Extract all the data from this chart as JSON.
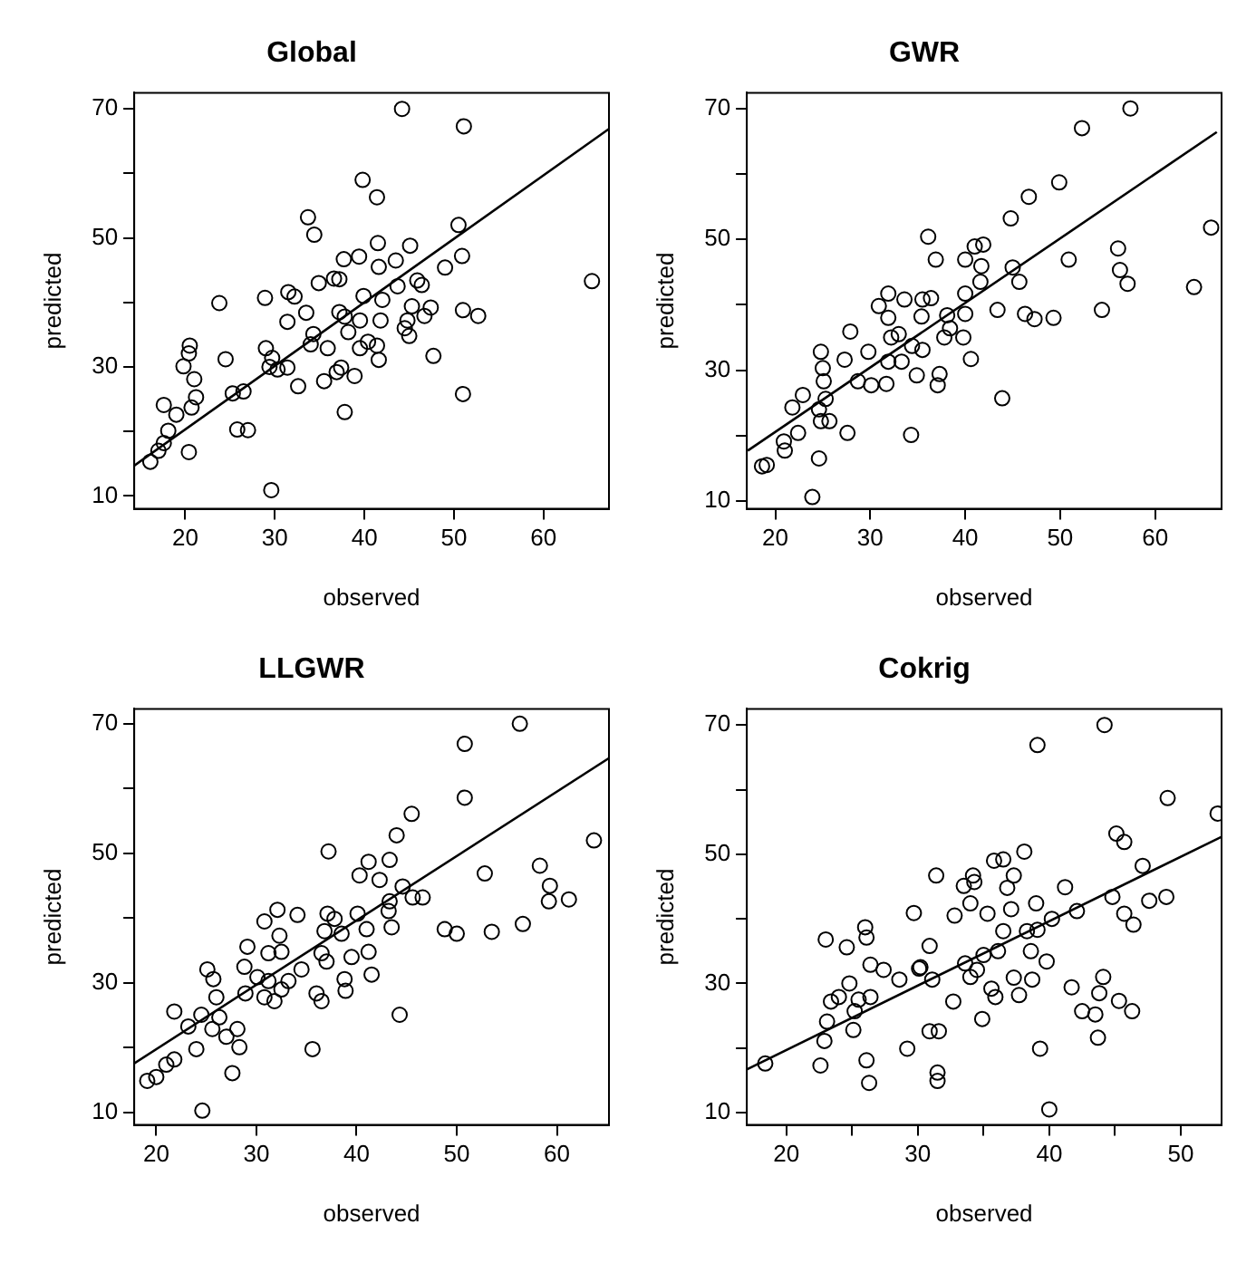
{
  "chart_data": [
    {
      "type": "scatter",
      "title": "Global",
      "xlabel": "observed",
      "ylabel": "predicted",
      "xlim": [
        14.3,
        67.3
      ],
      "ylim": [
        8,
        72.5
      ],
      "xticks": [
        20,
        30,
        40,
        50,
        60
      ],
      "yticks": [
        10,
        {
          "value": 20,
          "label": null
        },
        30,
        {
          "value": 40,
          "label": null
        },
        50,
        {
          "value": 60,
          "label": null
        },
        70
      ],
      "grid": false,
      "legend": false,
      "series": [
        {
          "type": "scatter",
          "marker": "circle",
          "color": "#000000",
          "x": [
            44.2,
            51.1,
            39.8,
            41.4,
            33.7,
            34.4,
            50.5,
            41.5,
            45.1,
            39.4,
            37.7,
            43.5,
            41.6,
            50.9,
            49,
            65.4,
            34.9,
            36.6,
            37.2,
            45.9,
            43.7,
            46.4,
            31.5,
            32.2,
            23.8,
            28.9,
            39.9,
            42,
            33.5,
            37.2,
            37.8,
            39.5,
            41.8,
            44.8,
            47.4,
            46.7,
            45.3,
            51,
            52.7,
            31.4,
            44.5,
            45,
            34.3,
            38.2,
            40.4,
            41.4,
            39.5,
            20.5,
            20.4,
            19.8,
            24.5,
            29,
            29.7,
            29.4,
            30.3,
            31.4,
            34,
            35.9,
            41.6,
            47.7,
            21,
            21.2,
            20.7,
            19,
            17.6,
            25.3,
            26.5,
            32.6,
            35.5,
            36.9,
            37.4,
            38.9,
            51,
            37.8,
            25.8,
            27,
            20.4,
            18.1,
            17.6,
            17,
            16.1,
            29.6
          ],
          "values": [
            70,
            67.3,
            59,
            56.3,
            53.2,
            50.5,
            52,
            49.2,
            48.8,
            47.1,
            46.7,
            46.5,
            45.5,
            47.2,
            45.4,
            43.3,
            43,
            43.7,
            43.6,
            43.4,
            42.5,
            42.7,
            41.6,
            40.9,
            39.9,
            40.7,
            41,
            40.4,
            38.4,
            38.5,
            37.8,
            37.2,
            37.2,
            37.2,
            39.2,
            37.9,
            39.4,
            38.8,
            37.9,
            37,
            36,
            34.8,
            35.1,
            35.4,
            33.9,
            33.3,
            32.9,
            33.3,
            32.1,
            30.1,
            31.2,
            32.9,
            31.4,
            30,
            29.6,
            29.9,
            33.5,
            32.9,
            31.1,
            31.7,
            28.1,
            25.3,
            23.7,
            22.6,
            24.1,
            25.9,
            26.2,
            27,
            27.8,
            29.2,
            29.9,
            28.6,
            25.8,
            23,
            20.3,
            20.2,
            16.8,
            20.1,
            18.2,
            17,
            15.3,
            10.9
          ]
        },
        {
          "type": "line",
          "color": "#000000",
          "x": [
            14.3,
            67.3
          ],
          "values": [
            14.7,
            66.9
          ]
        }
      ]
    },
    {
      "type": "scatter",
      "title": "GWR",
      "xlabel": "observed",
      "ylabel": "predicted",
      "xlim": [
        17,
        67
      ],
      "ylim": [
        8.8,
        72.4
      ],
      "xticks": [
        20,
        30,
        40,
        50,
        60
      ],
      "yticks": [
        10,
        {
          "value": 20,
          "label": null
        },
        30,
        {
          "value": 40,
          "label": null
        },
        50,
        {
          "value": 60,
          "label": null
        },
        70
      ],
      "grid": false,
      "legend": false,
      "series": [
        {
          "type": "scatter",
          "marker": "circle",
          "color": "#000000",
          "x": [
            57.4,
            52.3,
            49.9,
            46.7,
            44.8,
            36.1,
            36.9,
            50.9,
            41,
            41.9,
            40,
            41.7,
            56.1,
            56.3,
            57.1,
            64.1,
            65.9,
            45,
            45.7,
            41.6,
            43.4,
            46.3,
            47.3,
            49.3,
            54.4,
            40,
            35.5,
            36.4,
            33.6,
            31.9,
            30.9,
            31.9,
            35.4,
            38.1,
            38.4,
            40,
            37.8,
            39.8,
            35.5,
            34.4,
            33,
            32.2,
            27.9,
            27.3,
            29.8,
            31.9,
            33.3,
            34.9,
            37.3,
            37.1,
            40.6,
            28.7,
            30.1,
            31.7,
            24.8,
            25,
            25.1,
            25.3,
            22.9,
            21.8,
            24.6,
            24.8,
            25.7,
            22.4,
            27.6,
            34.3,
            43.9,
            20.9,
            21,
            19.1,
            18.6,
            24.6,
            23.9
          ],
          "values": [
            70,
            67,
            58.7,
            56.5,
            53.2,
            50.4,
            46.9,
            46.9,
            48.9,
            49.2,
            46.9,
            45.9,
            48.6,
            45.3,
            43.2,
            42.7,
            51.8,
            45.7,
            43.5,
            43.5,
            39.2,
            38.6,
            37.8,
            38,
            39.2,
            41.7,
            40.8,
            41,
            40.8,
            41.7,
            39.8,
            38,
            38.2,
            38.4,
            36.4,
            38.6,
            35,
            35,
            33.1,
            33.7,
            35.5,
            35,
            35.9,
            31.6,
            32.8,
            31.3,
            31.3,
            29.2,
            29.4,
            27.7,
            31.7,
            28.3,
            27.7,
            27.9,
            32.8,
            30.3,
            28.3,
            25.6,
            26.2,
            24.3,
            24,
            22.2,
            22.2,
            20.4,
            20.4,
            20.1,
            25.7,
            19.1,
            17.7,
            15.5,
            15.3,
            16.5,
            10.6
          ]
        },
        {
          "type": "line",
          "color": "#000000",
          "x": [
            17.1,
            66.5
          ],
          "values": [
            17.7,
            66.4
          ]
        }
      ]
    },
    {
      "type": "scatter",
      "title": "LLGWR",
      "xlabel": "observed",
      "ylabel": "predicted",
      "xlim": [
        17.8,
        65.2
      ],
      "ylim": [
        8.1,
        72.3
      ],
      "xticks": [
        20,
        30,
        40,
        50,
        60
      ],
      "yticks": [
        10,
        {
          "value": 20,
          "label": null
        },
        30,
        {
          "value": 40,
          "label": null
        },
        50,
        {
          "value": 60,
          "label": null
        },
        70
      ],
      "grid": false,
      "legend": false,
      "series": [
        {
          "type": "scatter",
          "marker": "circle",
          "color": "#000000",
          "x": [
            56.3,
            50.8,
            50.8,
            45.5,
            44,
            37.2,
            63.7,
            41.2,
            43.3,
            40.3,
            42.3,
            52.8,
            58.3,
            59.3,
            59.2,
            61.2,
            56.6,
            53.5,
            48.8,
            50,
            44.6,
            45.6,
            46.6,
            43.3,
            43.2,
            43.5,
            40.1,
            41,
            37.1,
            37.8,
            36.8,
            38.5,
            39.5,
            41.2,
            41.5,
            32.1,
            30.8,
            34.1,
            32.3,
            29.1,
            32.5,
            31.2,
            34.5,
            36.5,
            37,
            38.8,
            38.9,
            36,
            36.5,
            44.3,
            35.6,
            28.8,
            30.1,
            31.2,
            32.5,
            33.2,
            28.9,
            30.8,
            31.8,
            25.1,
            25.7,
            26,
            26.3,
            25.6,
            27,
            28.1,
            28.3,
            24.5,
            23.2,
            21.8,
            24,
            27.6,
            21.8,
            21,
            20,
            19.1,
            24.6
          ],
          "values": [
            70,
            66.9,
            58.6,
            56.1,
            52.8,
            50.3,
            52,
            48.7,
            49,
            46.6,
            45.9,
            46.9,
            48.1,
            45,
            42.6,
            42.9,
            39.1,
            37.9,
            38.3,
            37.6,
            44.9,
            43.2,
            43.2,
            42.6,
            41.1,
            38.6,
            40.7,
            38.3,
            40.7,
            39.9,
            38,
            37.6,
            34,
            34.8,
            31.3,
            41.3,
            39.5,
            40.5,
            37.3,
            35.6,
            34.8,
            34.6,
            32.1,
            34.6,
            33.3,
            30.6,
            28.8,
            28.4,
            27.2,
            25.1,
            19.8,
            32.5,
            30.9,
            30.3,
            29,
            30.3,
            28.4,
            27.8,
            27.2,
            32.1,
            30.6,
            27.8,
            24.7,
            22.9,
            21.7,
            22.9,
            20.1,
            25.1,
            23.3,
            25.6,
            19.8,
            16.1,
            18.2,
            17.4,
            15.5,
            14.9,
            10.3
          ]
        },
        {
          "type": "line",
          "color": "#000000",
          "x": [
            17.8,
            65.2
          ],
          "values": [
            17.6,
            64.7
          ]
        }
      ]
    },
    {
      "type": "scatter",
      "title": "Cokrig",
      "xlabel": "observed",
      "ylabel": "predicted",
      "xlim": [
        17,
        53.1
      ],
      "ylim": [
        8.1,
        72.5
      ],
      "xticks": [
        20,
        {
          "value": 25,
          "label": null
        },
        30,
        {
          "value": 35,
          "label": null
        },
        40,
        {
          "value": 45,
          "label": null
        },
        50
      ],
      "yticks": [
        10,
        {
          "value": 20,
          "label": null
        },
        30,
        {
          "value": 40,
          "label": null
        },
        50,
        {
          "value": 60,
          "label": null
        },
        70
      ],
      "grid": false,
      "legend": false,
      "series": [
        {
          "type": "scatter",
          "marker": "circle",
          "color": "#000000",
          "x": [
            44.2,
            39.1,
            49,
            52.8,
            45.1,
            45.7,
            47.1,
            48.9,
            47.6,
            44.8,
            45.7,
            46.4,
            38.1,
            35.8,
            36.5,
            37.3,
            34.2,
            33.5,
            34.3,
            36.8,
            37.1,
            31.4,
            34,
            35.3,
            36.5,
            32.8,
            29.7,
            39,
            41.2,
            42.1,
            40.2,
            38.3,
            39.1,
            38.6,
            39.8,
            38.7,
            37.3,
            36.1,
            35,
            33.6,
            34.5,
            34,
            35.6,
            35.9,
            37.7,
            34.9,
            32.7,
            30.9,
            30.2,
            31.1,
            28.6,
            30.1,
            27.4,
            26.4,
            26,
            26.1,
            24.6,
            23,
            24.8,
            24,
            25.5,
            26.4,
            25.2,
            25.1,
            23.1,
            23.4,
            22.9,
            22.6,
            26.1,
            26.3,
            29.2,
            30.9,
            31.6,
            31.5,
            31.5,
            39.3,
            40,
            41.7,
            42.5,
            43.5,
            43.7,
            44.1,
            43.8,
            45.3,
            46.3,
            18.4
          ],
          "values": [
            70,
            66.9,
            58.7,
            56.3,
            53.2,
            51.9,
            48.2,
            43.4,
            42.8,
            43.4,
            40.8,
            39.1,
            50.4,
            49,
            49.2,
            46.7,
            46.7,
            45.1,
            45.7,
            44.8,
            41.5,
            46.7,
            42.4,
            40.8,
            38.1,
            40.5,
            40.9,
            42.4,
            44.9,
            41.2,
            40,
            38.1,
            38.3,
            35,
            33.4,
            30.6,
            30.9,
            35,
            34.4,
            33.1,
            32.1,
            31,
            29.2,
            27.9,
            28.2,
            24.5,
            27.2,
            35.8,
            32.5,
            30.6,
            30.6,
            32.3,
            32.1,
            32.9,
            38.7,
            37.1,
            35.6,
            36.8,
            30,
            27.9,
            27.5,
            27.9,
            25.7,
            22.8,
            24.1,
            27.2,
            21.1,
            17.3,
            18.1,
            14.6,
            19.9,
            22.6,
            22.6,
            16.2,
            14.9,
            19.9,
            10.5,
            29.4,
            25.7,
            25.2,
            21.6,
            31,
            28.5,
            27.3,
            25.7,
            17.6
          ]
        },
        {
          "type": "line",
          "color": "#000000",
          "x": [
            17,
            53.1
          ],
          "values": [
            16.7,
            52.7
          ]
        }
      ]
    }
  ]
}
